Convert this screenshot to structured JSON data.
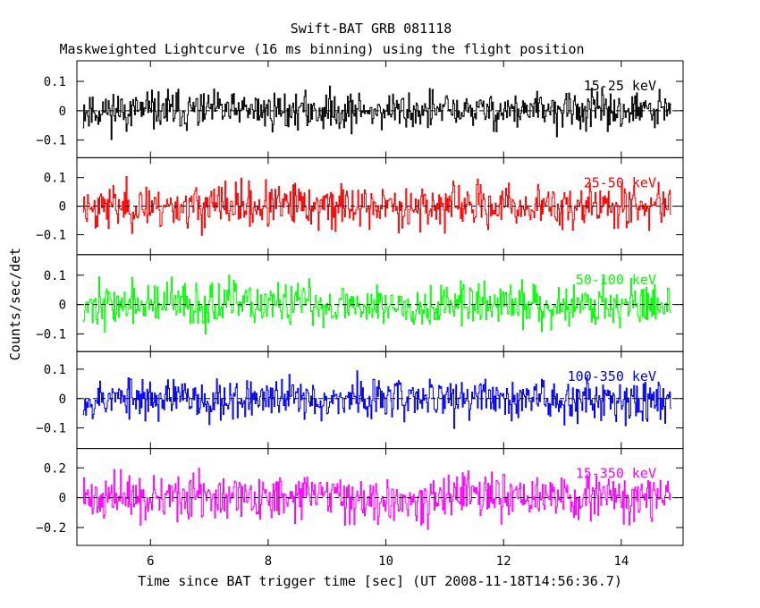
{
  "chart_data": {
    "type": "line",
    "title": "Swift-BAT GRB 081118",
    "subtitle": "Maskweighted Lightcurve (16 ms binning) using the flight position",
    "xlabel": "Time since BAT trigger time [sec] (UT 2008-11-18T14:56:36.7)",
    "ylabel": "Counts/sec/det",
    "xlim": [
      4.75,
      15.05
    ],
    "x_ticks": [
      6,
      8,
      10,
      12,
      14
    ],
    "x_tick_labels": [
      "6",
      "8",
      "10",
      "12",
      "14"
    ],
    "x_start": 4.85,
    "x_end": 14.85,
    "bin_width": 0.016,
    "grid": false,
    "zero_line": "dashed",
    "series": [
      {
        "name": "15-25 keV",
        "color": "#000000",
        "ylim": [
          -0.16,
          0.17
        ],
        "y_ticks": [
          -0.1,
          0,
          0.1
        ],
        "y_tick_labels": [
          "−0.1",
          "0",
          "0.1"
        ],
        "typical_range": [
          -0.12,
          0.14
        ],
        "seed": 11
      },
      {
        "name": "25-50 keV",
        "color": "#ff0000",
        "ylim": [
          -0.17,
          0.17
        ],
        "y_ticks": [
          -0.1,
          0,
          0.1
        ],
        "y_tick_labels": [
          "−0.1",
          "0",
          "0.1"
        ],
        "typical_range": [
          -0.15,
          0.16
        ],
        "seed": 23
      },
      {
        "name": "50-100 keV",
        "color": "#00ff00",
        "ylim": [
          -0.16,
          0.17
        ],
        "y_ticks": [
          -0.1,
          0,
          0.1
        ],
        "y_tick_labels": [
          "−0.1",
          "0",
          "0.1"
        ],
        "typical_range": [
          -0.14,
          0.16
        ],
        "seed": 37
      },
      {
        "name": "100-350 keV",
        "color": "#0000ff",
        "ylim": [
          -0.17,
          0.16
        ],
        "y_ticks": [
          -0.1,
          0,
          0.1
        ],
        "y_tick_labels": [
          "−0.1",
          "0",
          "0.1"
        ],
        "typical_range": [
          -0.14,
          0.14
        ],
        "seed": 53
      },
      {
        "name": "15-350 keV",
        "color": "#ff00ff",
        "ylim": [
          -0.32,
          0.33
        ],
        "y_ticks": [
          -0.2,
          0,
          0.2
        ],
        "y_tick_labels": [
          "−0.2",
          "0",
          "0.2"
        ],
        "typical_range": [
          -0.3,
          0.3
        ],
        "seed": 71
      }
    ]
  }
}
